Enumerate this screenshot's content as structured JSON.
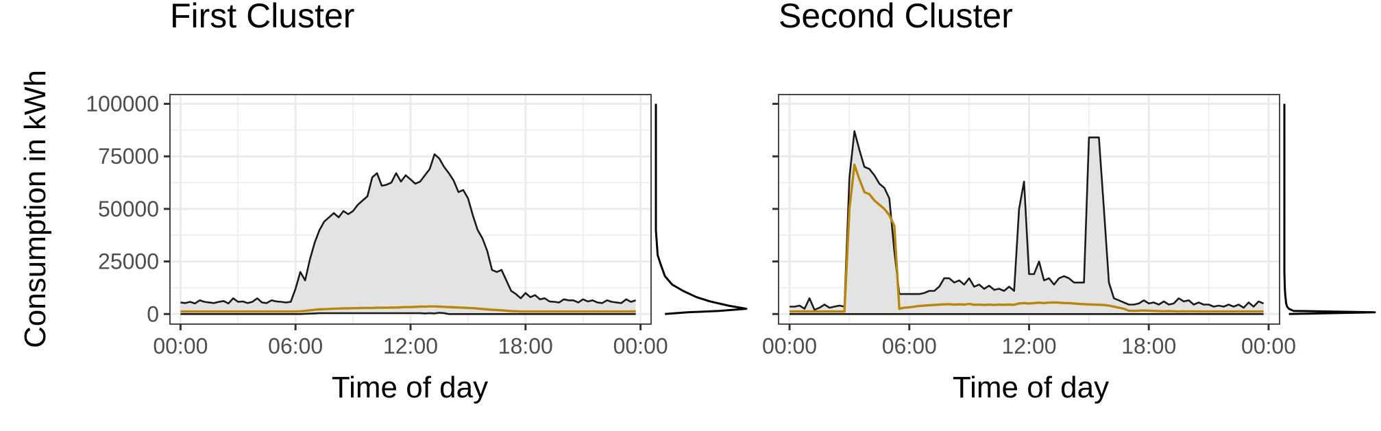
{
  "figure": {
    "ylabel": "Consumption in kWh",
    "xlabel": "Time of day",
    "ylim": [
      -4800,
      104400
    ],
    "yticks": [
      0,
      25000,
      50000,
      75000,
      100000
    ],
    "ytick_labels": [
      "0",
      "25000",
      "50000",
      "75000",
      "100000"
    ],
    "xlim": [
      -0.55,
      24.55
    ],
    "xticks": [
      0,
      6,
      12,
      18,
      24
    ],
    "xtick_labels": [
      "00:00",
      "06:00",
      "12:00",
      "18:00",
      "00:00"
    ],
    "colors": {
      "band_fill": "#e3e3e3",
      "band_line": "#1a1a1a",
      "mean_line": "#b8860b",
      "grid": "#ebebeb",
      "panel_border": "#333333",
      "density_line": "#000000"
    }
  },
  "chart_data": [
    {
      "type": "area",
      "title": "First Cluster",
      "xlabel": "Time of day",
      "ylabel": "Consumption in kWh",
      "x_unit": "hours",
      "x": [
        0,
        0.25,
        0.5,
        0.75,
        1,
        1.25,
        1.5,
        1.75,
        2,
        2.25,
        2.5,
        2.75,
        3,
        3.25,
        3.5,
        3.75,
        4,
        4.25,
        4.5,
        4.75,
        5,
        5.25,
        5.5,
        5.75,
        6,
        6.25,
        6.5,
        6.75,
        7,
        7.25,
        7.5,
        7.75,
        8,
        8.25,
        8.5,
        8.75,
        9,
        9.25,
        9.5,
        9.75,
        10,
        10.25,
        10.5,
        10.75,
        11,
        11.25,
        11.5,
        11.75,
        12,
        12.25,
        12.5,
        12.75,
        13,
        13.25,
        13.5,
        13.75,
        14,
        14.25,
        14.5,
        14.75,
        15,
        15.25,
        15.5,
        15.75,
        16,
        16.25,
        16.5,
        16.75,
        17,
        17.25,
        17.5,
        17.75,
        18,
        18.25,
        18.5,
        18.75,
        19,
        19.25,
        19.5,
        19.75,
        20,
        20.25,
        20.5,
        20.75,
        21,
        21.25,
        21.5,
        21.75,
        22,
        22.25,
        22.5,
        22.75,
        23,
        23.25,
        23.5,
        23.75
      ],
      "series": [
        {
          "role": "upper",
          "values": [
            5500,
            5200,
            5800,
            5000,
            6500,
            5800,
            5500,
            5200,
            5800,
            6200,
            5000,
            7500,
            5800,
            6000,
            5200,
            5800,
            7500,
            5500,
            5200,
            6500,
            6000,
            5800,
            5500,
            5800,
            12000,
            20000,
            16000,
            26000,
            34000,
            40000,
            44000,
            46000,
            48000,
            46000,
            49000,
            47500,
            49000,
            52000,
            54000,
            56000,
            65000,
            67000,
            61000,
            61500,
            62500,
            67000,
            63000,
            66000,
            64000,
            62000,
            63000,
            66000,
            69000,
            76000,
            74000,
            70000,
            67000,
            63500,
            58000,
            59000,
            55000,
            47000,
            40000,
            36000,
            30000,
            21000,
            20000,
            21000,
            16000,
            11000,
            9500,
            7500,
            10000,
            8000,
            9000,
            7000,
            7500,
            6000,
            5800,
            5500,
            7000,
            6500,
            6500,
            5500,
            7000,
            6000,
            6500,
            5500,
            5200,
            6500,
            5800,
            5500,
            5200,
            7000,
            5800,
            6500
          ]
        },
        {
          "role": "mean",
          "values": [
            1200,
            1200,
            1200,
            1200,
            1200,
            1200,
            1200,
            1200,
            1200,
            1200,
            1200,
            1200,
            1200,
            1200,
            1200,
            1200,
            1200,
            1200,
            1200,
            1200,
            1200,
            1200,
            1200,
            1200,
            1200,
            1300,
            1500,
            1800,
            2000,
            2200,
            2300,
            2400,
            2500,
            2600,
            2700,
            2700,
            2800,
            2800,
            2900,
            2900,
            2900,
            3000,
            3000,
            3000,
            3100,
            3100,
            3200,
            3300,
            3300,
            3400,
            3500,
            3500,
            3600,
            3600,
            3500,
            3400,
            3300,
            3200,
            3100,
            3000,
            2900,
            2800,
            2600,
            2400,
            2200,
            2000,
            1900,
            1800,
            1600,
            1400,
            1300,
            1200,
            1200,
            1200,
            1200,
            1200,
            1200,
            1200,
            1200,
            1200,
            1200,
            1200,
            1200,
            1200,
            1200,
            1200,
            1200,
            1200,
            1200,
            1200,
            1200,
            1200,
            1200,
            1200,
            1200,
            1200
          ]
        },
        {
          "role": "lower",
          "values": [
            0,
            0,
            0,
            0,
            0,
            0,
            0,
            0,
            0,
            0,
            0,
            0,
            0,
            0,
            0,
            0,
            0,
            0,
            0,
            0,
            0,
            0,
            0,
            0,
            0,
            0,
            100,
            200,
            300,
            400,
            400,
            400,
            400,
            400,
            400,
            400,
            400,
            400,
            400,
            400,
            400,
            400,
            400,
            400,
            400,
            400,
            400,
            400,
            400,
            400,
            400,
            300,
            400,
            300,
            600,
            400,
            0,
            0,
            0,
            0,
            0,
            0,
            0,
            0,
            0,
            0,
            0,
            0,
            0,
            0,
            0,
            0,
            0,
            0,
            0,
            0,
            0,
            0,
            0,
            0,
            0,
            0,
            0,
            0,
            0,
            0,
            0,
            0,
            0,
            0,
            0,
            0,
            0,
            0,
            0,
            0
          ]
        }
      ],
      "density": {
        "y": [
          100000,
          60000,
          40000,
          28000,
          24000,
          18000,
          14000,
          11000,
          8000,
          6000,
          4000,
          2500,
          1500,
          800,
          0
        ],
        "d": [
          0.0,
          0.0,
          0.0,
          0.02,
          0.05,
          0.1,
          0.18,
          0.3,
          0.45,
          0.6,
          0.8,
          1.0,
          0.7,
          0.35,
          0.1
        ]
      }
    },
    {
      "type": "area",
      "title": "Second Cluster",
      "xlabel": "Time of day",
      "ylabel": "Consumption in kWh",
      "x_unit": "hours",
      "x": [
        0,
        0.25,
        0.5,
        0.75,
        1,
        1.25,
        1.5,
        1.75,
        2,
        2.25,
        2.5,
        2.75,
        3,
        3.25,
        3.5,
        3.75,
        4,
        4.25,
        4.5,
        4.75,
        5,
        5.25,
        5.5,
        5.75,
        6,
        6.25,
        6.5,
        6.75,
        7,
        7.25,
        7.5,
        7.75,
        8,
        8.25,
        8.5,
        8.75,
        9,
        9.25,
        9.5,
        9.75,
        10,
        10.25,
        10.5,
        10.75,
        11,
        11.25,
        11.5,
        11.75,
        12,
        12.25,
        12.5,
        12.75,
        13,
        13.25,
        13.5,
        13.75,
        14,
        14.25,
        14.5,
        14.75,
        15,
        15.25,
        15.5,
        15.75,
        16,
        16.25,
        16.5,
        16.75,
        17,
        17.25,
        17.5,
        17.75,
        18,
        18.25,
        18.5,
        18.75,
        19,
        19.25,
        19.5,
        19.75,
        20,
        20.25,
        20.5,
        20.75,
        21,
        21.25,
        21.5,
        21.75,
        22,
        22.25,
        22.5,
        22.75,
        23,
        23.25,
        23.5,
        23.75
      ],
      "series": [
        {
          "role": "upper",
          "values": [
            3500,
            3500,
            4000,
            2500,
            7500,
            2000,
            3000,
            4500,
            3000,
            3500,
            4000,
            3500,
            65000,
            87000,
            78000,
            70000,
            69000,
            66000,
            62000,
            60000,
            55000,
            30000,
            9500,
            9500,
            9500,
            9500,
            9500,
            10000,
            11000,
            11000,
            13000,
            17000,
            17000,
            15000,
            16000,
            14000,
            17000,
            13000,
            14000,
            12000,
            13500,
            11500,
            12000,
            11000,
            13000,
            11000,
            50000,
            63000,
            19000,
            19000,
            25000,
            16000,
            17000,
            14000,
            17000,
            18000,
            17000,
            15000,
            15000,
            15000,
            84000,
            84000,
            84000,
            50000,
            15000,
            7500,
            6500,
            5500,
            4500,
            4500,
            5000,
            6500,
            5000,
            5500,
            4500,
            6000,
            4500,
            5000,
            7500,
            6000,
            6500,
            4500,
            5500,
            4500,
            4500,
            3500,
            4000,
            3500,
            4500,
            3500,
            4500,
            3000,
            5500,
            3500,
            6000,
            5000
          ]
        },
        {
          "role": "mean",
          "values": [
            1200,
            1200,
            1200,
            1200,
            1200,
            1200,
            1200,
            1200,
            1200,
            1200,
            1200,
            1200,
            50000,
            71000,
            64000,
            58000,
            57000,
            54000,
            52000,
            50000,
            47000,
            42000,
            2500,
            3000,
            3200,
            3500,
            3800,
            4000,
            4200,
            4300,
            4500,
            4600,
            4700,
            4500,
            4600,
            4500,
            4800,
            4400,
            4500,
            4300,
            4500,
            4300,
            4500,
            4400,
            4500,
            4400,
            5000,
            5200,
            5000,
            5200,
            5400,
            5200,
            5400,
            5500,
            5400,
            5200,
            5200,
            5000,
            4800,
            4700,
            4600,
            4500,
            4400,
            4300,
            4000,
            3500,
            3000,
            2500,
            1600,
            1500,
            1600,
            1700,
            1600,
            1500,
            1400,
            1300,
            1400,
            1300,
            1200,
            1300,
            1200,
            1300,
            1200,
            1200,
            1200,
            1200,
            1200,
            1200,
            1200,
            1200,
            1200,
            1200,
            1200,
            1200,
            1200,
            1200
          ]
        },
        {
          "role": "lower",
          "values": [
            0,
            0,
            0,
            0,
            0,
            0,
            0,
            0,
            0,
            0,
            0,
            0,
            0,
            0,
            0,
            0,
            0,
            0,
            0,
            0,
            0,
            0,
            0,
            0,
            0,
            0,
            0,
            0,
            0,
            0,
            0,
            0,
            0,
            0,
            0,
            0,
            0,
            0,
            0,
            0,
            0,
            0,
            0,
            0,
            0,
            0,
            0,
            0,
            0,
            0,
            0,
            0,
            0,
            0,
            0,
            0,
            0,
            0,
            0,
            0,
            0,
            0,
            0,
            0,
            0,
            0,
            0,
            0,
            0,
            0,
            0,
            0,
            0,
            0,
            0,
            0,
            0,
            0,
            0,
            0,
            0,
            0,
            0,
            0,
            0,
            0,
            0,
            0,
            0,
            0,
            0,
            0,
            0,
            0,
            0,
            0
          ]
        }
      ],
      "density": {
        "y": [
          100000,
          40000,
          20000,
          12000,
          9000,
          7000,
          5000,
          3500,
          2500,
          1500,
          800,
          300,
          0
        ],
        "d": [
          0.0,
          0.0,
          0.0,
          0.005,
          0.01,
          0.015,
          0.02,
          0.03,
          0.05,
          0.1,
          1.0,
          0.4,
          0.05
        ]
      }
    }
  ]
}
